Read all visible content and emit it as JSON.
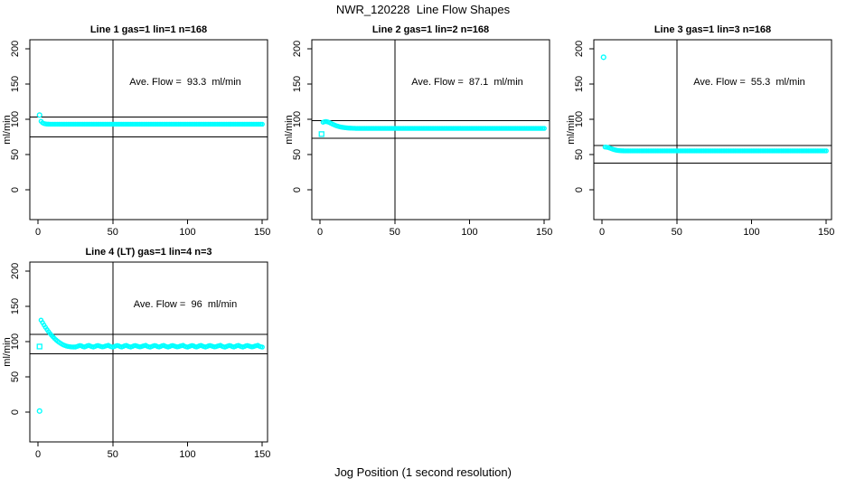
{
  "figure": {
    "title": "NWR_120228  Line Flow Shapes",
    "xlabel": "Jog Position (1 second resolution)",
    "background": "#ffffff",
    "point_color": "#00ffff",
    "line_color": "#000000"
  },
  "axes": {
    "x_ticks": [
      0,
      50,
      100,
      150
    ],
    "y_ticks": [
      0,
      50,
      100,
      150,
      200
    ],
    "ylabel": "ml/min",
    "xlim": [
      -5.5,
      153.5
    ],
    "ylim": [
      -42.3,
      212.8
    ],
    "grid": false
  },
  "chart_data": [
    {
      "type": "scatter",
      "title": "Line 1 gas=1 lin=1 n=168",
      "annotation": "Ave. Flow =  93.3  ml/min",
      "ave_flow_ml_min": 93.3,
      "gas": 1,
      "lin": 1,
      "n": 168,
      "vline_x": 50,
      "limit_lines_y": [
        103,
        75
      ],
      "x_start": 2,
      "y": [
        97.2,
        95,
        94,
        93.5,
        93.2,
        93.1,
        93,
        93,
        93,
        93,
        93,
        93,
        93,
        93,
        93,
        93,
        93,
        93,
        93,
        93,
        93,
        93,
        93,
        93,
        93,
        93,
        93,
        93,
        93,
        93,
        93,
        93,
        93,
        93,
        93,
        93,
        93,
        93,
        93,
        93,
        93,
        93,
        93,
        93,
        93,
        93,
        93,
        93,
        93,
        93,
        93,
        93,
        93,
        93,
        93,
        93,
        93,
        93,
        93,
        93,
        93,
        93,
        93,
        93,
        93,
        93,
        93,
        93,
        93,
        93,
        93,
        93,
        93,
        93,
        93,
        93,
        93,
        93,
        93,
        93,
        93,
        93,
        93,
        93,
        93,
        93,
        93,
        93,
        93,
        93,
        93,
        93,
        93,
        93,
        93,
        93,
        93,
        93,
        93,
        93,
        93,
        93,
        93,
        93,
        93,
        93,
        93,
        93,
        93,
        93,
        93,
        93,
        93,
        93,
        93,
        93,
        93,
        93,
        93,
        93,
        93,
        93,
        93,
        93,
        93,
        93,
        93,
        93,
        93,
        93,
        93,
        93,
        93,
        93,
        93,
        93,
        93,
        93,
        93,
        93,
        93,
        93,
        93,
        93,
        93,
        93,
        93,
        93,
        93
      ],
      "extra_points": [
        {
          "x": 1,
          "y": 106,
          "marker": "circle"
        }
      ]
    },
    {
      "type": "scatter",
      "title": "Line 2 gas=1 lin=2 n=168",
      "annotation": "Ave. Flow =  87.1  ml/min",
      "ave_flow_ml_min": 87.1,
      "gas": 1,
      "lin": 2,
      "n": 168,
      "vline_x": 50,
      "limit_lines_y": [
        98,
        73
      ],
      "x_start": 2,
      "y": [
        95.8,
        96.6,
        96.8,
        96.4,
        95.6,
        94.6,
        93.5,
        92.5,
        91.6,
        90.8,
        90.1,
        89.5,
        89,
        88.6,
        88.3,
        88,
        87.8,
        87.6,
        87.5,
        87.4,
        87.3,
        87.2,
        87.1,
        87.1,
        87.1,
        87.1,
        87.1,
        87.1,
        87.1,
        87.1,
        87.1,
        87.1,
        87.1,
        87.1,
        87.1,
        87.1,
        87.1,
        87.1,
        87.1,
        87.1,
        87.1,
        87.1,
        87.1,
        87.1,
        87.1,
        87.1,
        87.1,
        87.1,
        87.1,
        87.1,
        87.1,
        87.1,
        87.1,
        87.1,
        87.1,
        87.1,
        87.1,
        87.1,
        87.1,
        87.1,
        87.1,
        87.1,
        87.1,
        87.1,
        87.1,
        87.1,
        87.1,
        87.1,
        87.1,
        87.1,
        87.1,
        87.1,
        87.1,
        87.1,
        87.1,
        87.1,
        87.1,
        87.1,
        87.1,
        87.1,
        87.1,
        87.1,
        87.1,
        87.1,
        87.1,
        87.1,
        87.1,
        87.1,
        87.1,
        87.1,
        87.1,
        87.1,
        87.1,
        87.1,
        87.1,
        87.1,
        87.1,
        87.1,
        87.1,
        87.1,
        87.1,
        87.1,
        87.1,
        87.1,
        87.1,
        87.1,
        87.1,
        87.1,
        87.1,
        87.1,
        87.1,
        87.1,
        87.1,
        87.1,
        87.1,
        87.1,
        87.1,
        87.1,
        87.1,
        87.1,
        87.1,
        87.1,
        87.1,
        87.1,
        87.1,
        87.1,
        87.1,
        87.1,
        87.1,
        87.1,
        87.1,
        87.1,
        87.1,
        87.1,
        87.1,
        87.1,
        87.1,
        87.1,
        87.1,
        87.1,
        87.1,
        87.1,
        87.1,
        87.1,
        87.1,
        87.1,
        87.1,
        87.1,
        87.1
      ],
      "extra_points": [
        {
          "x": 1,
          "y": 79,
          "marker": "square"
        }
      ]
    },
    {
      "type": "scatter",
      "title": "Line 3 gas=1 lin=3 n=168",
      "annotation": "Ave. Flow =  55.3  ml/min",
      "ave_flow_ml_min": 55.3,
      "gas": 1,
      "lin": 3,
      "n": 168,
      "vline_x": 50,
      "limit_lines_y": [
        62.5,
        37.5
      ],
      "x_start": 2,
      "y": [
        60.6,
        60.4,
        60,
        59.3,
        58.5,
        57.7,
        57,
        56.4,
        56,
        55.7,
        55.5,
        55.4,
        55.3,
        55.2,
        55.2,
        55.2,
        55.2,
        55.2,
        55.2,
        55.2,
        55.2,
        55.2,
        55.2,
        55.2,
        55.2,
        55.2,
        55.2,
        55.2,
        55.2,
        55.2,
        55.2,
        55.2,
        55.2,
        55.2,
        55.2,
        55.2,
        55.2,
        55.2,
        55.2,
        55.2,
        55.2,
        55.2,
        55.2,
        55.2,
        55.2,
        55.2,
        55.2,
        55.2,
        55.2,
        55.2,
        55.2,
        55.2,
        55.2,
        55.2,
        55.2,
        55.2,
        55.2,
        55.2,
        55.2,
        55.2,
        55.2,
        55.2,
        55.2,
        55.2,
        55.2,
        55.2,
        55.2,
        55.2,
        55.2,
        55.2,
        55.2,
        55.2,
        55.2,
        55.2,
        55.2,
        55.2,
        55.2,
        55.2,
        55.2,
        55.2,
        55.2,
        55.2,
        55.2,
        55.2,
        55.2,
        55.2,
        55.2,
        55.2,
        55.2,
        55.2,
        55.2,
        55.2,
        55.2,
        55.2,
        55.2,
        55.2,
        55.2,
        55.2,
        55.2,
        55.2,
        55.2,
        55.2,
        55.2,
        55.2,
        55.2,
        55.2,
        55.2,
        55.2,
        55.2,
        55.2,
        55.2,
        55.2,
        55.2,
        55.2,
        55.2,
        55.2,
        55.2,
        55.2,
        55.2,
        55.2,
        55.2,
        55.2,
        55.2,
        55.2,
        55.2,
        55.2,
        55.2,
        55.2,
        55.2,
        55.2,
        55.2,
        55.2,
        55.2,
        55.2,
        55.2,
        55.2,
        55.2,
        55.2,
        55.2,
        55.2,
        55.2,
        55.2,
        55.2,
        55.2,
        55.2,
        55.2,
        55.2,
        55.2,
        55.2
      ],
      "extra_points": [
        {
          "x": 1,
          "y": 188,
          "marker": "circle"
        }
      ]
    },
    {
      "type": "scatter",
      "title": "Line 4 (LT) gas=1 lin=4 n=3",
      "annotation": "Ave. Flow =  96  ml/min",
      "ave_flow_ml_min": 96,
      "gas": 1,
      "lin": 4,
      "n": 3,
      "vline_x": 50,
      "limit_lines_y": [
        110,
        82.5
      ],
      "x_start": 2,
      "y": [
        130.5,
        127,
        123.5,
        120.2,
        117.1,
        114.2,
        111.5,
        109,
        106.7,
        104.5,
        102.5,
        100.7,
        99.1,
        97.7,
        96.4,
        95.3,
        94.4,
        93.7,
        93.2,
        92.8,
        92.5,
        92.4,
        92.3,
        92.3,
        93,
        93.8,
        94.4,
        93.9,
        92.9,
        92.4,
        93.2,
        94.1,
        94.6,
        93.7,
        92.8,
        92.3,
        93,
        93.9,
        94.5,
        93.8,
        93.1,
        92.5,
        92.9,
        93.6,
        94.2,
        94.7,
        93.5,
        92.7,
        92.2,
        93,
        93.8,
        94.4,
        93.9,
        92.9,
        92.4,
        93.2,
        94.1,
        94.6,
        93.7,
        92.8,
        92.3,
        93,
        93.9,
        94.5,
        93.8,
        93.1,
        92.5,
        92.9,
        93.6,
        94.2,
        94.7,
        93.5,
        92.7,
        92.2,
        93,
        93.8,
        94.4,
        93.9,
        92.9,
        92.4,
        93.2,
        94.1,
        94.6,
        93.7,
        92.8,
        92.3,
        93,
        93.9,
        94.5,
        93.8,
        93.1,
        92.5,
        92.9,
        93.6,
        94.2,
        94.7,
        93.5,
        92.7,
        92.2,
        93,
        93.8,
        94.4,
        93.9,
        92.9,
        92.4,
        93.2,
        94.1,
        94.6,
        93.7,
        92.8,
        92.3,
        93,
        93.9,
        94.5,
        93.8,
        93.1,
        92.5,
        92.9,
        93.6,
        94.2,
        94.7,
        93.5,
        92.7,
        92.2,
        93,
        93.8,
        94.4,
        93.9,
        92.9,
        92.4,
        93.2,
        94.1,
        94.6,
        93.7,
        92.8,
        92.3,
        93,
        93.9,
        94.5,
        93.8,
        93.1,
        92.5,
        92.9,
        93.6,
        94.2,
        94.7,
        93.5,
        92.7,
        92.2
      ],
      "extra_points": [
        {
          "x": 1,
          "y": 1.5,
          "marker": "circle"
        },
        {
          "x": 1,
          "y": 93,
          "marker": "square"
        }
      ]
    }
  ]
}
